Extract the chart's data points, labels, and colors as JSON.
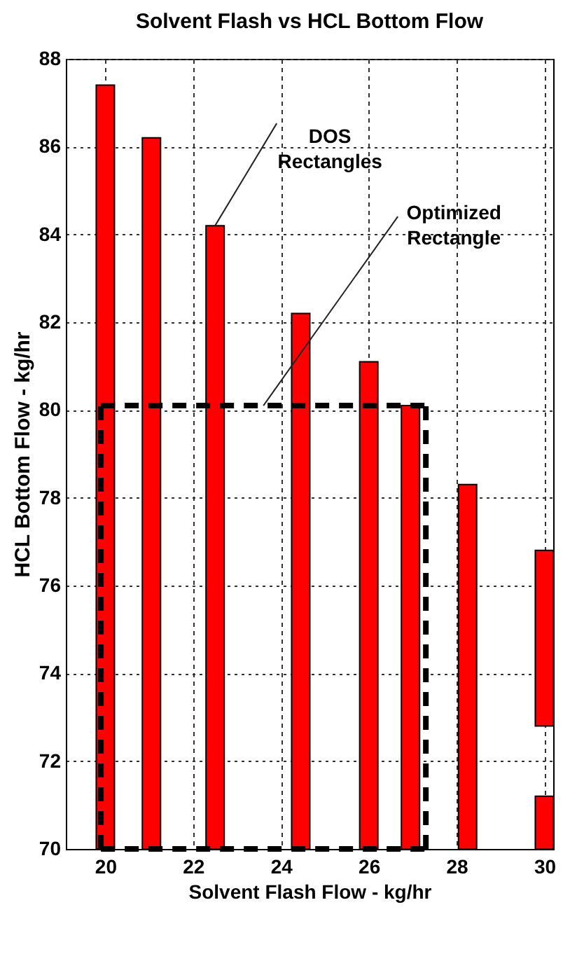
{
  "chart_data": {
    "type": "bar",
    "title": "Solvent Flash vs HCL Bottom Flow",
    "xlabel": "Solvent Flash Flow - kg/hr",
    "ylabel": "HCL Bottom Flow - kg/hr",
    "xlim": [
      19.1,
      30.2
    ],
    "xticks": [
      20,
      22,
      24,
      26,
      28,
      30
    ],
    "ylim": [
      70,
      88
    ],
    "yticks": [
      70,
      72,
      74,
      76,
      78,
      80,
      82,
      84,
      86,
      88
    ],
    "grid": true,
    "series": [
      {
        "color": "#ff0000",
        "x": [
          20,
          21.05,
          22.5,
          24.45,
          26,
          26.95,
          28.25,
          30
        ],
        "base": [
          70,
          70,
          70,
          70,
          70,
          70,
          70,
          70
        ],
        "values": [
          17.4,
          16.2,
          14.2,
          12.2,
          11.1,
          10.1,
          8.3,
          1.2
        ]
      },
      {
        "color": "#ff0000",
        "x": [
          30
        ],
        "base": [
          72.8
        ],
        "values": [
          4.0
        ]
      },
      {
        "type": "line",
        "color": "#000000",
        "line_style": "dashed",
        "x": [
          19.9,
          27.3
        ],
        "values": [
          80.1,
          80.1
        ]
      },
      {
        "type": "line",
        "color": "#000000",
        "line_style": "dashed",
        "x": [
          19.9,
          27.3
        ],
        "values": [
          70,
          70
        ]
      },
      {
        "type": "line",
        "color": "#000000",
        "line_style": "dashed",
        "x": [
          19.9,
          19.9
        ],
        "values": [
          70,
          80.1
        ]
      },
      {
        "type": "line",
        "color": "#000000",
        "line_style": "dashed",
        "x": [
          27.3,
          27.3
        ],
        "values": [
          70,
          80.1
        ]
      }
    ],
    "annotations": [
      {
        "text": "DOS\nRectangles",
        "x": 22.5,
        "y": 84.2
      },
      {
        "text": "Optimized\nRectangle",
        "x": 23.6,
        "y": 80.1
      }
    ]
  }
}
